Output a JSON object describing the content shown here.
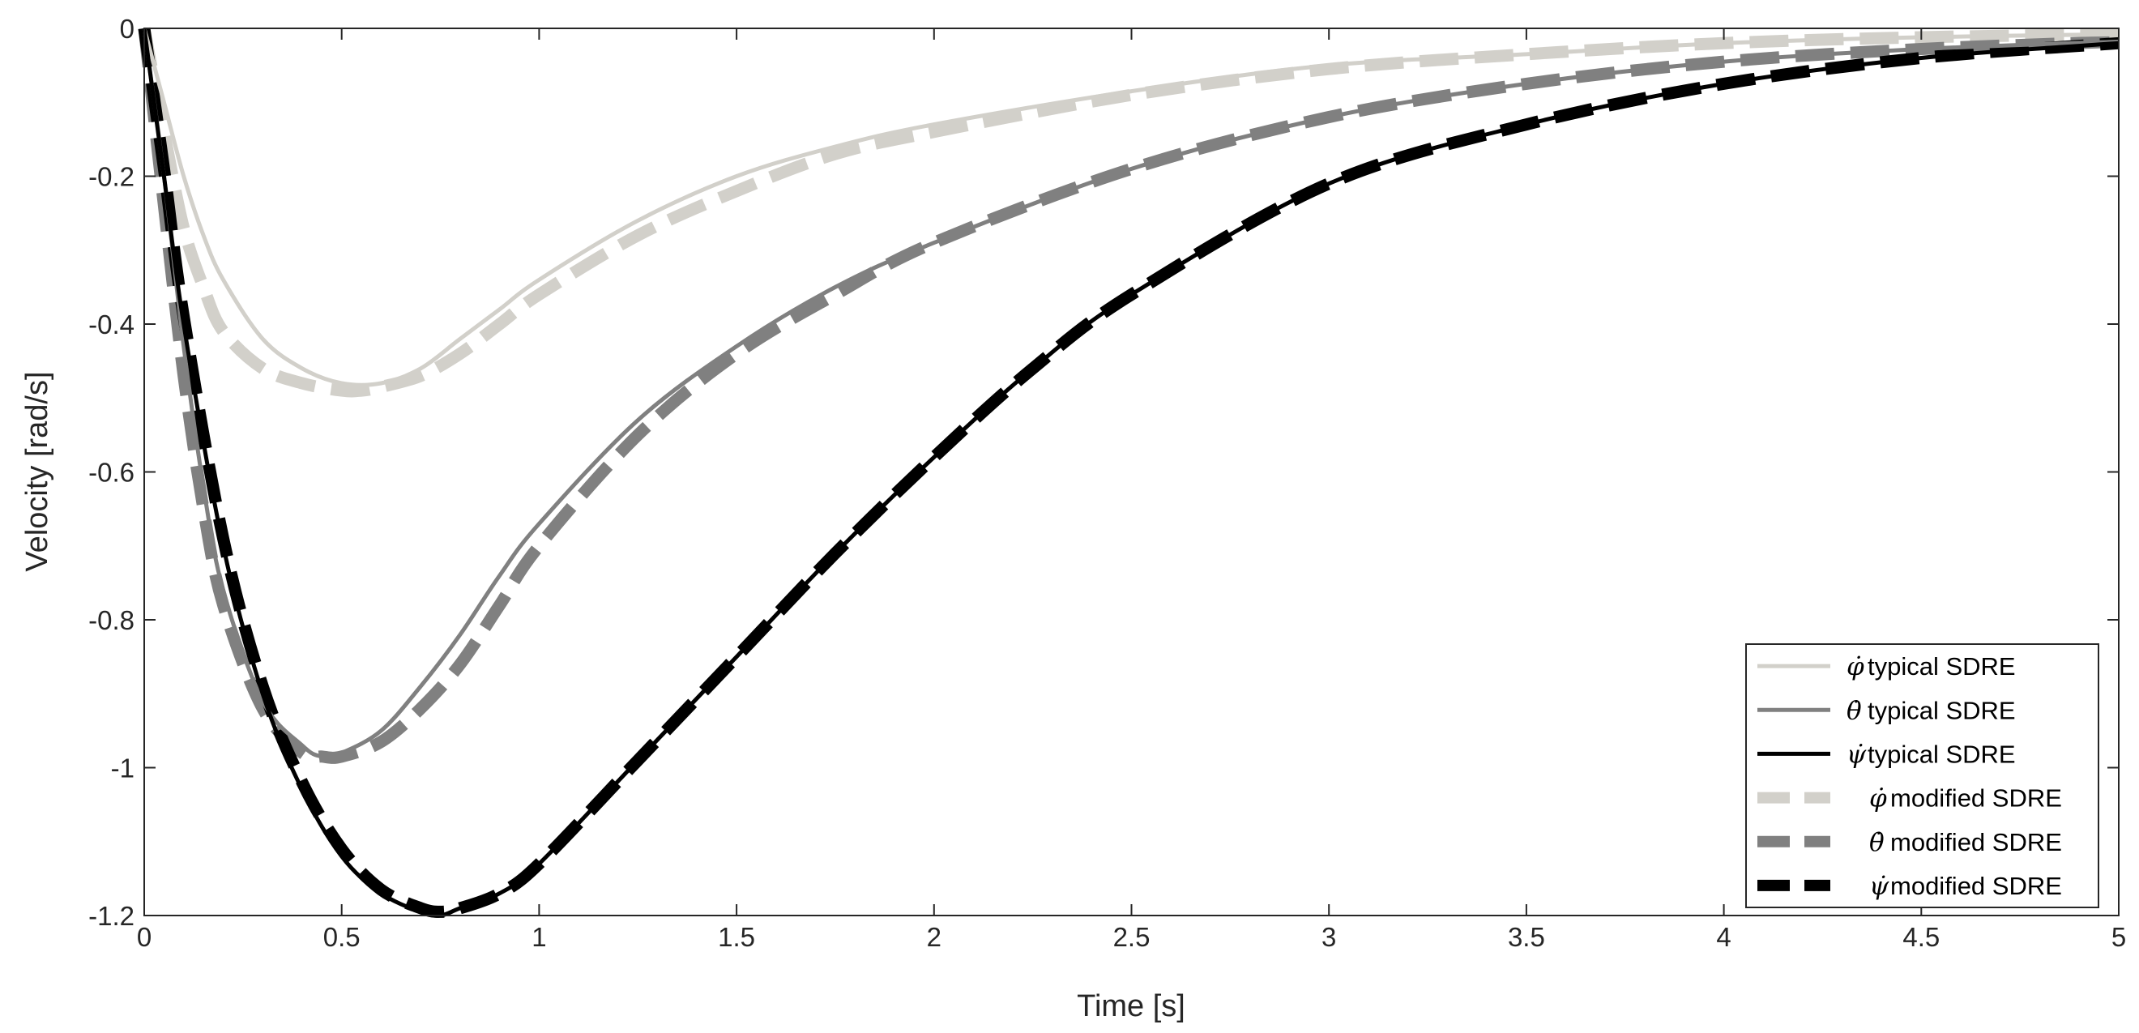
{
  "chart_data": {
    "type": "line",
    "title": "",
    "xlabel": "Time [s]",
    "ylabel": "Velocity [rad/s]",
    "xlim": [
      0,
      5
    ],
    "ylim": [
      -1.2,
      0
    ],
    "x_ticks": [
      0,
      0.5,
      1,
      1.5,
      2,
      2.5,
      3,
      3.5,
      4,
      4.5,
      5
    ],
    "x_tick_labels": [
      "0",
      "0.5",
      "1",
      "1.5",
      "2",
      "2.5",
      "3",
      "3.5",
      "4",
      "4.5",
      "5"
    ],
    "y_ticks": [
      0,
      -0.2,
      -0.4,
      -0.6,
      -0.8,
      -1,
      -1.2
    ],
    "y_tick_labels": [
      "0",
      "-0.2",
      "-0.4",
      "-0.6",
      "-0.8",
      "-1",
      "-1.2"
    ],
    "grid": false,
    "legend_position": "bottom-right",
    "series": [
      {
        "name": "typical SDRE",
        "symbol": "φ̇",
        "color": "#d2d0ca",
        "style": "solid",
        "x": [
          0,
          0.05,
          0.1,
          0.15,
          0.2,
          0.3,
          0.4,
          0.5,
          0.6,
          0.7,
          0.8,
          0.9,
          1.0,
          1.25,
          1.5,
          1.75,
          2.0,
          2.5,
          3.0,
          3.5,
          4.0,
          4.5,
          5.0
        ],
        "values": [
          0,
          -0.1,
          -0.2,
          -0.28,
          -0.34,
          -0.42,
          -0.46,
          -0.48,
          -0.48,
          -0.46,
          -0.42,
          -0.38,
          -0.34,
          -0.26,
          -0.2,
          -0.16,
          -0.13,
          -0.085,
          -0.05,
          -0.035,
          -0.02,
          -0.012,
          -0.008
        ]
      },
      {
        "name": "typical SDRE",
        "symbol": "θ̇",
        "color": "#808080",
        "style": "solid",
        "x": [
          0,
          0.05,
          0.1,
          0.15,
          0.2,
          0.3,
          0.4,
          0.45,
          0.5,
          0.6,
          0.7,
          0.8,
          0.9,
          1.0,
          1.25,
          1.5,
          1.75,
          2.0,
          2.5,
          3.0,
          3.5,
          4.0,
          4.5,
          5.0
        ],
        "values": [
          0,
          -0.2,
          -0.43,
          -0.62,
          -0.76,
          -0.91,
          -0.97,
          -0.985,
          -0.98,
          -0.95,
          -0.89,
          -0.82,
          -0.74,
          -0.67,
          -0.53,
          -0.43,
          -0.35,
          -0.29,
          -0.19,
          -0.12,
          -0.075,
          -0.045,
          -0.028,
          -0.018
        ]
      },
      {
        "name": "typical SDRE",
        "symbol": "ψ̇",
        "color": "#000000",
        "style": "solid",
        "x": [
          0,
          0.05,
          0.1,
          0.2,
          0.3,
          0.4,
          0.5,
          0.6,
          0.7,
          0.75,
          0.8,
          0.9,
          1.0,
          1.25,
          1.5,
          1.75,
          2.0,
          2.25,
          2.5,
          3.0,
          3.5,
          4.0,
          4.5,
          5.0
        ],
        "values": [
          0,
          -0.2,
          -0.4,
          -0.7,
          -0.9,
          -1.03,
          -1.12,
          -1.17,
          -1.195,
          -1.2,
          -1.19,
          -1.17,
          -1.13,
          -0.99,
          -0.85,
          -0.71,
          -0.58,
          -0.46,
          -0.36,
          -0.21,
          -0.13,
          -0.075,
          -0.04,
          -0.02
        ]
      },
      {
        "name": "modified SDRE",
        "symbol": "φ̇",
        "color": "#d2d0ca",
        "style": "dashed",
        "x": [
          0,
          0.05,
          0.1,
          0.15,
          0.2,
          0.3,
          0.4,
          0.5,
          0.55,
          0.6,
          0.7,
          0.8,
          0.9,
          1.0,
          1.25,
          1.5,
          1.75,
          2.0,
          2.5,
          3.0,
          3.5,
          4.0,
          4.5,
          5.0
        ],
        "values": [
          0,
          -0.14,
          -0.27,
          -0.35,
          -0.41,
          -0.46,
          -0.48,
          -0.49,
          -0.49,
          -0.485,
          -0.47,
          -0.44,
          -0.4,
          -0.36,
          -0.28,
          -0.22,
          -0.17,
          -0.14,
          -0.09,
          -0.055,
          -0.035,
          -0.02,
          -0.012,
          -0.008
        ]
      },
      {
        "name": "modified SDRE",
        "symbol": "θ̇",
        "color": "#808080",
        "style": "dashed",
        "x": [
          0,
          0.05,
          0.1,
          0.15,
          0.2,
          0.3,
          0.4,
          0.45,
          0.5,
          0.6,
          0.7,
          0.8,
          0.9,
          1.0,
          1.25,
          1.5,
          1.75,
          2.0,
          2.5,
          3.0,
          3.5,
          4.0,
          4.5,
          5.0
        ],
        "values": [
          0,
          -0.24,
          -0.47,
          -0.65,
          -0.78,
          -0.92,
          -0.98,
          -0.985,
          -0.985,
          -0.965,
          -0.92,
          -0.86,
          -0.78,
          -0.7,
          -0.55,
          -0.44,
          -0.36,
          -0.29,
          -0.19,
          -0.12,
          -0.075,
          -0.045,
          -0.028,
          -0.018
        ]
      },
      {
        "name": "modified SDRE",
        "symbol": "ψ̇",
        "color": "#000000",
        "style": "dashed",
        "x": [
          0,
          0.05,
          0.1,
          0.2,
          0.3,
          0.4,
          0.5,
          0.6,
          0.7,
          0.75,
          0.8,
          0.9,
          1.0,
          1.25,
          1.5,
          1.75,
          2.0,
          2.25,
          2.5,
          3.0,
          3.5,
          4.0,
          4.5,
          5.0
        ],
        "values": [
          0,
          -0.19,
          -0.39,
          -0.69,
          -0.89,
          -1.02,
          -1.11,
          -1.165,
          -1.19,
          -1.195,
          -1.19,
          -1.17,
          -1.13,
          -0.99,
          -0.85,
          -0.71,
          -0.58,
          -0.46,
          -0.36,
          -0.21,
          -0.13,
          -0.075,
          -0.04,
          -0.02
        ]
      }
    ]
  }
}
